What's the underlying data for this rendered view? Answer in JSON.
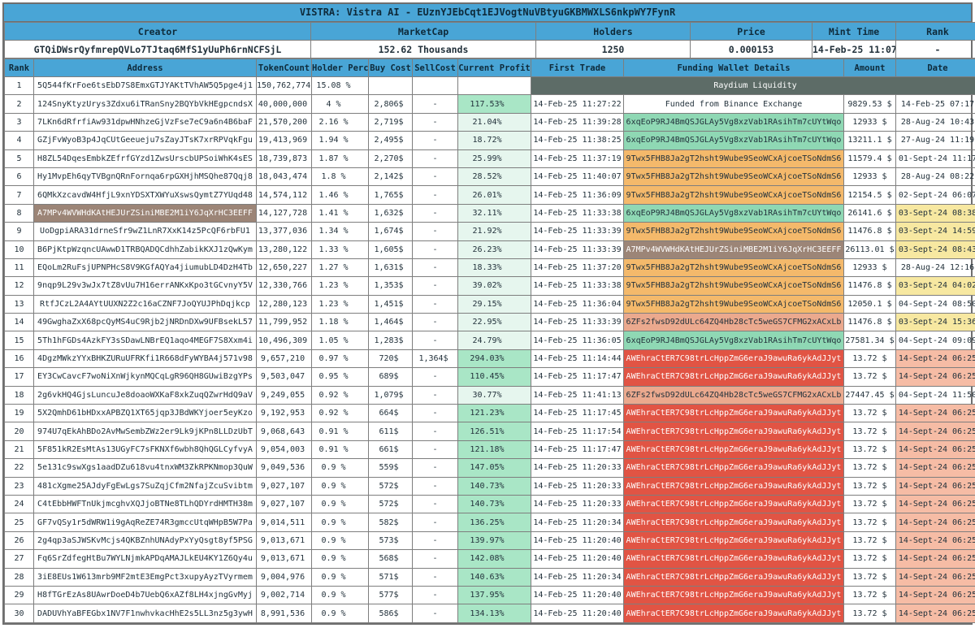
{
  "title": "VISTRA: Vistra AI - EUznYJEbCqt1EJVogtNuVBtyuGKBMWXLS6nkpWY7FynR",
  "info": {
    "headers": [
      "Creator",
      "MarketCap",
      "Holders",
      "Price",
      "Mint Time",
      "Rank"
    ],
    "values": [
      "GTQiDWsrQyfmrepQVLo7TJtaq6MfS1yUuPh6rnNCFSjL",
      "152.62 Thousands",
      "1250",
      "0.000153",
      "14-Feb-25 11:07:37",
      "-"
    ]
  },
  "colors": {
    "header_blue": "#49a5d6",
    "liquidity_slate": "#5d6c67",
    "profit_light_green": "#e6f6ee",
    "profit_medium_green": "#a9e6c6",
    "funding_green": "#8fd8b4",
    "funding_orange": "#f4b96b",
    "funding_salmon": "#eba98e",
    "funding_red": "#e15444",
    "funding_taupe": "#9c8577",
    "date_yellow": "#f7e8a1",
    "date_salmon": "#f6bca5"
  },
  "table": {
    "headers": [
      "Rank",
      "Address",
      "TokenCount",
      "Holder Perc",
      "Buy Cost",
      "SellCost",
      "Current Profit",
      "First Trade",
      "Funding Wallet Details",
      "Amount",
      "Date"
    ],
    "rows": [
      {
        "rank": "1",
        "address": "5Q544fKrFoe6tsEbD7S8EmxGTJYAKtTVhAW5Q5pge4j1",
        "token": "150,762,774",
        "perc": "15.08 %",
        "buy": "",
        "sell": "",
        "profit": "",
        "profit_style": "",
        "merged": true,
        "funding": "Raydium Liquidity"
      },
      {
        "rank": "2",
        "address": "124SnyKtyzUrys3Zdxu6iTRanSny2BQYbVkHEgpcndsX",
        "token": "40,000,000",
        "perc": "4 %",
        "buy": "2,806$",
        "sell": "-",
        "profit": "117.53%",
        "profit_style": "medium",
        "first": "14-Feb-25 11:27:22",
        "funding": "Funded from Binance Exchange",
        "fund_style": "",
        "amount": "9829.53 $",
        "date": "14-Feb-25 07:17",
        "date_style": ""
      },
      {
        "rank": "3",
        "address": "7LKn6dRfrfiAw931dpwHNhzeGjVzFse7eC9a6n4B6baF",
        "token": "21,570,200",
        "perc": "2.16 %",
        "buy": "2,719$",
        "sell": "-",
        "profit": "21.04%",
        "profit_style": "light",
        "first": "14-Feb-25 11:39:28",
        "funding": "6xqEoP9RJ4BmQSJGLAy5Vg8xzVab1RAsihTm7cUYtWqo",
        "fund_style": "green",
        "amount": "12933 $",
        "date": "28-Aug-24 10:43",
        "date_style": ""
      },
      {
        "rank": "4",
        "address": "GZjFvWyoB3p4JqCUtGeeueju7sZayJTsK7xrRPVqkFgu",
        "token": "19,413,969",
        "perc": "1.94 %",
        "buy": "2,495$",
        "sell": "-",
        "profit": "18.72%",
        "profit_style": "light",
        "first": "14-Feb-25 11:38:25",
        "funding": "6xqEoP9RJ4BmQSJGLAy5Vg8xzVab1RAsihTm7cUYtWqo",
        "fund_style": "green",
        "amount": "13211.1 $",
        "date": "27-Aug-24 11:19",
        "date_style": ""
      },
      {
        "rank": "5",
        "address": "H8ZL54DqesEmbkZEfrfGYzd1ZwsUrscbUPSoiWhK4sES",
        "token": "18,739,873",
        "perc": "1.87 %",
        "buy": "2,270$",
        "sell": "-",
        "profit": "25.99%",
        "profit_style": "light",
        "first": "14-Feb-25 11:37:19",
        "funding": "9Twx5FHB8Ja2gT2hsht9Wube9SeoWCxAjcoeTSoNdmS6",
        "fund_style": "orange",
        "amount": "11579.4 $",
        "date": "01-Sept-24 11:17",
        "date_style": ""
      },
      {
        "rank": "6",
        "address": "Hy1MvpEh6qyTVBgnQRnFornqa6rpGXHjhMSQhe87Qqj8",
        "token": "18,043,474",
        "perc": "1.8 %",
        "buy": "2,142$",
        "sell": "-",
        "profit": "28.52%",
        "profit_style": "light",
        "first": "14-Feb-25 11:40:07",
        "funding": "9Twx5FHB8Ja2gT2hsht9Wube9SeoWCxAjcoeTSoNdmS6",
        "fund_style": "orange",
        "amount": "12933 $",
        "date": "28-Aug-24 08:22",
        "date_style": ""
      },
      {
        "rank": "7",
        "address": "6QMkXzcavdW4HfjL9xnYDSXTXWYuXswsQymtZ7YUqd48",
        "token": "14,574,112",
        "perc": "1.46 %",
        "buy": "1,765$",
        "sell": "-",
        "profit": "26.01%",
        "profit_style": "light",
        "first": "14-Feb-25 11:36:09",
        "funding": "9Twx5FHB8Ja2gT2hsht9Wube9SeoWCxAjcoeTSoNdmS6",
        "fund_style": "orange",
        "amount": "12154.5 $",
        "date": "02-Sept-24 06:07",
        "date_style": ""
      },
      {
        "rank": "8",
        "address": "A7MPv4WVWHdKAtHEJUrZSiniMBE2M1iY6JqXrHC3EEFF",
        "addr_style": "taupe",
        "token": "14,127,728",
        "perc": "1.41 %",
        "buy": "1,632$",
        "sell": "-",
        "profit": "32.11%",
        "profit_style": "light",
        "first": "14-Feb-25 11:33:38",
        "funding": "6xqEoP9RJ4BmQSJGLAy5Vg8xzVab1RAsihTm7cUYtWqo",
        "fund_style": "green",
        "amount": "26141.6 $",
        "date": "03-Sept-24 08:38",
        "date_style": "yellow"
      },
      {
        "rank": "9",
        "address": "UoDgpiARA31drneSfr9wZ1LnR7XxK14z5PcQF6rbFU1",
        "token": "13,377,036",
        "perc": "1.34 %",
        "buy": "1,674$",
        "sell": "-",
        "profit": "21.92%",
        "profit_style": "light",
        "first": "14-Feb-25 11:33:39",
        "funding": "9Twx5FHB8Ja2gT2hsht9Wube9SeoWCxAjcoeTSoNdmS6",
        "fund_style": "orange",
        "amount": "11476.8 $",
        "date": "03-Sept-24 14:59",
        "date_style": "yellow"
      },
      {
        "rank": "10",
        "address": "B6PjKtpWzqncUAwwD1TRBQADQCdhhZabikKXJ1zQwKym",
        "token": "13,280,122",
        "perc": "1.33 %",
        "buy": "1,605$",
        "sell": "-",
        "profit": "26.23%",
        "profit_style": "light",
        "first": "14-Feb-25 11:33:39",
        "funding": "A7MPv4WVWHdKAtHEJUrZSiniMBE2M1iY6JqXrHC3EEFF",
        "fund_style": "taupe",
        "amount": "26113.01 $",
        "date": "03-Sept-24 08:43",
        "date_style": "yellow"
      },
      {
        "rank": "11",
        "address": "EQoLm2RuFsjUPNPHcS8V9KGfAQYa4jiumubLD4DzH4Tb",
        "token": "12,650,227",
        "perc": "1.27 %",
        "buy": "1,631$",
        "sell": "-",
        "profit": "18.33%",
        "profit_style": "light",
        "first": "14-Feb-25 11:37:20",
        "funding": "9Twx5FHB8Ja2gT2hsht9Wube9SeoWCxAjcoeTSoNdmS6",
        "fund_style": "orange",
        "amount": "12933 $",
        "date": "28-Aug-24 12:16",
        "date_style": ""
      },
      {
        "rank": "12",
        "address": "9nqp9L29v3wJx7tZ8vUu7H16errANKxKpo3tGCvnyY5V",
        "token": "12,330,766",
        "perc": "1.23 %",
        "buy": "1,353$",
        "sell": "-",
        "profit": "39.02%",
        "profit_style": "light",
        "first": "14-Feb-25 11:33:38",
        "funding": "9Twx5FHB8Ja2gT2hsht9Wube9SeoWCxAjcoeTSoNdmS6",
        "fund_style": "orange",
        "amount": "11476.8 $",
        "date": "03-Sept-24 04:02",
        "date_style": "yellow"
      },
      {
        "rank": "13",
        "address": "RtfJCzL2A4AYtUUXN2Z2c16aCZNF7JoQYUJPhDqjkcp",
        "token": "12,280,123",
        "perc": "1.23 %",
        "buy": "1,451$",
        "sell": "-",
        "profit": "29.15%",
        "profit_style": "light",
        "first": "14-Feb-25 11:36:04",
        "funding": "9Twx5FHB8Ja2gT2hsht9Wube9SeoWCxAjcoeTSoNdmS6",
        "fund_style": "orange",
        "amount": "12050.1 $",
        "date": "04-Sept-24 08:50",
        "date_style": ""
      },
      {
        "rank": "14",
        "address": "49GwghaZxX68pcQyMS4uC9Rjb2jNRDnDXw9UFBsekL57",
        "token": "11,799,952",
        "perc": "1.18 %",
        "buy": "1,464$",
        "sell": "-",
        "profit": "22.95%",
        "profit_style": "light",
        "first": "14-Feb-25 11:33:39",
        "funding": "6ZFs2fwsD92dULc64ZQ4Hb28cTc5weGS7CFMG2xACxLb",
        "fund_style": "fsalmon",
        "amount": "11476.8 $",
        "date": "03-Sept-24 15:36",
        "date_style": "yellow"
      },
      {
        "rank": "15",
        "address": "5Th1hFGDs4AzkFY3sSDawLNBrEQ1aqo4MEGF7S8Xxm4i",
        "token": "10,496,309",
        "perc": "1.05 %",
        "buy": "1,283$",
        "sell": "-",
        "profit": "24.79%",
        "profit_style": "light",
        "first": "14-Feb-25 11:36:05",
        "funding": "6xqEoP9RJ4BmQSJGLAy5Vg8xzVab1RAsihTm7cUYtWqo",
        "fund_style": "green",
        "amount": "27581.34 $",
        "date": "04-Sept-24 09:09",
        "date_style": ""
      },
      {
        "rank": "16",
        "address": "4DgzMWkzYYxBHKZURuUFRKfi1R668dFyWYBA4j571v98",
        "token": "9,657,210",
        "perc": "0.97 %",
        "buy": "720$",
        "sell": "1,364$",
        "profit": "294.03%",
        "profit_style": "medium",
        "first": "14-Feb-25 11:14:44",
        "funding": "AWEhraCtER7C98trLcHppZmG6eraJ9awuRa6ykAdJJyt",
        "fund_style": "red",
        "amount": "13.72 $",
        "date": "14-Sept-24 06:25",
        "date_style": "salmon"
      },
      {
        "rank": "17",
        "address": "EY3CwCavcF7woNiXnWjkynMQCqLgR96QH8GUwiBzgYPs",
        "token": "9,503,047",
        "perc": "0.95 %",
        "buy": "689$",
        "sell": "-",
        "profit": "110.45%",
        "profit_style": "medium",
        "first": "14-Feb-25 11:17:47",
        "funding": "AWEhraCtER7C98trLcHppZmG6eraJ9awuRa6ykAdJJyt",
        "fund_style": "red",
        "amount": "13.72 $",
        "date": "14-Sept-24 06:25",
        "date_style": "salmon"
      },
      {
        "rank": "18",
        "address": "2g6vkHQ4GjsLuncuJe8doaoWXKaF8xkZuqQZwrHdQ9aV",
        "token": "9,249,055",
        "perc": "0.92 %",
        "buy": "1,079$",
        "sell": "-",
        "profit": "30.77%",
        "profit_style": "light",
        "first": "14-Feb-25 11:41:13",
        "funding": "6ZFs2fwsD92dULc64ZQ4Hb28cTc5weGS7CFMG2xACxLb",
        "fund_style": "fsalmon",
        "amount": "27447.45 $",
        "date": "04-Sept-24 11:50",
        "date_style": ""
      },
      {
        "rank": "19",
        "address": "5X2QmhD61bHDxxAPBZQ1XT65jqp3JBdWKYjoer5eyKzo",
        "token": "9,192,953",
        "perc": "0.92 %",
        "buy": "664$",
        "sell": "-",
        "profit": "121.23%",
        "profit_style": "medium",
        "first": "14-Feb-25 11:17:45",
        "funding": "AWEhraCtER7C98trLcHppZmG6eraJ9awuRa6ykAdJJyt",
        "fund_style": "red",
        "amount": "13.72 $",
        "date": "14-Sept-24 06:25",
        "date_style": "salmon"
      },
      {
        "rank": "20",
        "address": "974U7qEkAhBDo2AvMwSembZWz2er9Lk9jKPn8LLDzUbT",
        "token": "9,068,643",
        "perc": "0.91 %",
        "buy": "611$",
        "sell": "-",
        "profit": "126.51%",
        "profit_style": "medium",
        "first": "14-Feb-25 11:17:54",
        "funding": "AWEhraCtER7C98trLcHppZmG6eraJ9awuRa6ykAdJJyt",
        "fund_style": "red",
        "amount": "13.72 $",
        "date": "14-Sept-24 06:25",
        "date_style": "salmon"
      },
      {
        "rank": "21",
        "address": "5F851kR2EsMtAs13UGyFC7sFKNXf6wbh8QhQGLCyfvyA",
        "token": "9,054,003",
        "perc": "0.91 %",
        "buy": "661$",
        "sell": "-",
        "profit": "121.18%",
        "profit_style": "medium",
        "first": "14-Feb-25 11:17:47",
        "funding": "AWEhraCtER7C98trLcHppZmG6eraJ9awuRa6ykAdJJyt",
        "fund_style": "red",
        "amount": "13.72 $",
        "date": "14-Sept-24 06:25",
        "date_style": "salmon"
      },
      {
        "rank": "22",
        "address": "5e131c9swXgs1aadDZu618vu4tnxWM3ZkRPKNmop3QuW",
        "token": "9,049,536",
        "perc": "0.9 %",
        "buy": "559$",
        "sell": "-",
        "profit": "147.05%",
        "profit_style": "medium",
        "first": "14-Feb-25 11:20:33",
        "funding": "AWEhraCtER7C98trLcHppZmG6eraJ9awuRa6ykAdJJyt",
        "fund_style": "red",
        "amount": "13.72 $",
        "date": "14-Sept-24 06:25",
        "date_style": "salmon"
      },
      {
        "rank": "23",
        "address": "481cXgme25AJdyFgEwLgs7SuZqjCfm2NfajZcuSvibtm",
        "token": "9,027,107",
        "perc": "0.9 %",
        "buy": "572$",
        "sell": "-",
        "profit": "140.73%",
        "profit_style": "medium",
        "first": "14-Feb-25 11:20:33",
        "funding": "AWEhraCtER7C98trLcHppZmG6eraJ9awuRa6ykAdJJyt",
        "fund_style": "red",
        "amount": "13.72 $",
        "date": "14-Sept-24 06:25",
        "date_style": "salmon"
      },
      {
        "rank": "24",
        "address": "C4tEbbHWFTnUkjmcghvXQJjoBTNe8TLhQDYrdHMTH38m",
        "token": "9,027,107",
        "perc": "0.9 %",
        "buy": "572$",
        "sell": "-",
        "profit": "140.73%",
        "profit_style": "medium",
        "first": "14-Feb-25 11:20:33",
        "funding": "AWEhraCtER7C98trLcHppZmG6eraJ9awuRa6ykAdJJyt",
        "fund_style": "red",
        "amount": "13.72 $",
        "date": "14-Sept-24 06:25",
        "date_style": "salmon"
      },
      {
        "rank": "25",
        "address": "GF7vQSy1r5dWRW1i9gAqReZE74R3gmccUtqWHpB5W7Pa",
        "token": "9,014,511",
        "perc": "0.9 %",
        "buy": "582$",
        "sell": "-",
        "profit": "136.25%",
        "profit_style": "medium",
        "first": "14-Feb-25 11:20:34",
        "funding": "AWEhraCtER7C98trLcHppZmG6eraJ9awuRa6ykAdJJyt",
        "fund_style": "red",
        "amount": "13.72 $",
        "date": "14-Sept-24 06:25",
        "date_style": "salmon"
      },
      {
        "rank": "26",
        "address": "2g4qp3aSJWSKvMcjs4QKBZnhUNAdyPxYyQsgt8yf5PSG",
        "token": "9,013,671",
        "perc": "0.9 %",
        "buy": "573$",
        "sell": "-",
        "profit": "139.97%",
        "profit_style": "medium",
        "first": "14-Feb-25 11:20:40",
        "funding": "AWEhraCtER7C98trLcHppZmG6eraJ9awuRa6ykAdJJyt",
        "fund_style": "red",
        "amount": "13.72 $",
        "date": "14-Sept-24 06:25",
        "date_style": "salmon"
      },
      {
        "rank": "27",
        "address": "Fq6SrZdfegHtBu7WYLNjmkAPDqAMAJLkEU4KY1Z6Qy4u",
        "token": "9,013,671",
        "perc": "0.9 %",
        "buy": "568$",
        "sell": "-",
        "profit": "142.08%",
        "profit_style": "medium",
        "first": "14-Feb-25 11:20:40",
        "funding": "AWEhraCtER7C98trLcHppZmG6eraJ9awuRa6ykAdJJyt",
        "fund_style": "red",
        "amount": "13.72 $",
        "date": "14-Sept-24 06:25",
        "date_style": "salmon"
      },
      {
        "rank": "28",
        "address": "3iE8EUs1W613mrb9MF2mtE3EmgPct3xupyAyzTVyrmem",
        "token": "9,004,976",
        "perc": "0.9 %",
        "buy": "571$",
        "sell": "-",
        "profit": "140.63%",
        "profit_style": "medium",
        "first": "14-Feb-25 11:20:34",
        "funding": "AWEhraCtER7C98trLcHppZmG6eraJ9awuRa6ykAdJJyt",
        "fund_style": "red",
        "amount": "13.72 $",
        "date": "14-Sept-24 06:25",
        "date_style": "salmon"
      },
      {
        "rank": "29",
        "address": "H8fTGrEzAs8UAwrDoeD4b7UebQ6xAZf8LH4xjngGvMyj",
        "token": "9,002,714",
        "perc": "0.9 %",
        "buy": "577$",
        "sell": "-",
        "profit": "137.95%",
        "profit_style": "medium",
        "first": "14-Feb-25 11:20:40",
        "funding": "AWEhraCtER7C98trLcHppZmG6eraJ9awuRa6ykAdJJyt",
        "fund_style": "red",
        "amount": "13.72 $",
        "date": "14-Sept-24 06:25",
        "date_style": "salmon"
      },
      {
        "rank": "30",
        "address": "DADUVhYaBFEGbx1NV7F1nwhvkacHhE2s5LL3nz5g3ywH",
        "token": "8,991,536",
        "perc": "0.9 %",
        "buy": "586$",
        "sell": "-",
        "profit": "134.13%",
        "profit_style": "medium",
        "first": "14-Feb-25 11:20:40",
        "funding": "AWEhraCtER7C98trLcHppZmG6eraJ9awuRa6ykAdJJyt",
        "fund_style": "red",
        "amount": "13.72 $",
        "date": "14-Sept-24 06:25",
        "date_style": "salmon"
      }
    ]
  }
}
